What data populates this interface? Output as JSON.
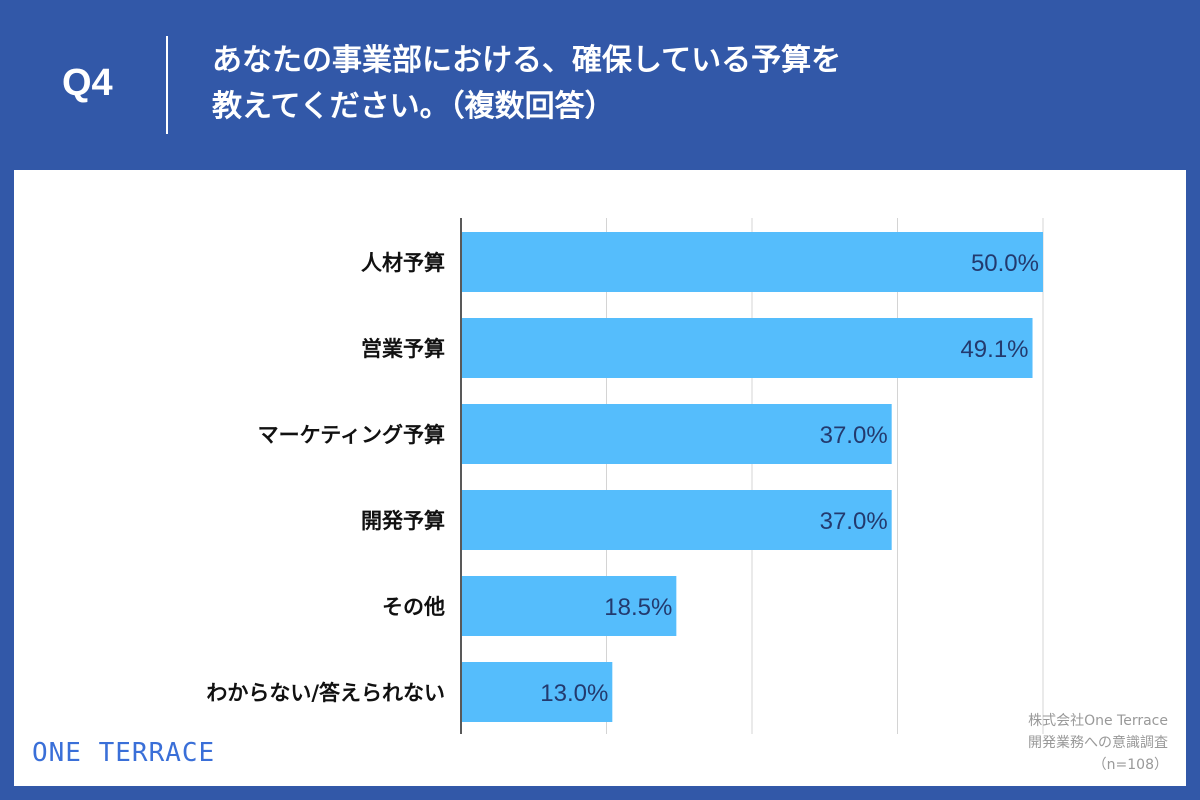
{
  "header": {
    "question_number": "Q4",
    "question_line1": "あなたの事業部における、確保している予算を",
    "question_line2": "教えてください。（複数回答）"
  },
  "footer": {
    "logo_text": "ONE TERRACE",
    "source_line1": "株式会社One Terrace",
    "source_line2": "開発業務への意識調査",
    "source_line3": "（n=108）"
  },
  "colors": {
    "background": "#3258a8",
    "bar": "#55bdfc",
    "value_text": "#233a6e",
    "logo": "#3a6fd8"
  },
  "chart_data": {
    "type": "bar",
    "orientation": "horizontal",
    "categories": [
      "人材予算",
      "営業予算",
      "マーケティング予算",
      "開発予算",
      "その他",
      "わからない/答えられない"
    ],
    "values": [
      50.0,
      49.1,
      37.0,
      37.0,
      18.5,
      13.0
    ],
    "value_labels": [
      "50.0%",
      "49.1%",
      "37.0%",
      "37.0%",
      "18.5%",
      "13.0%"
    ],
    "xlim": [
      0,
      50
    ],
    "grid": true,
    "title": "",
    "xlabel": "",
    "ylabel": ""
  }
}
